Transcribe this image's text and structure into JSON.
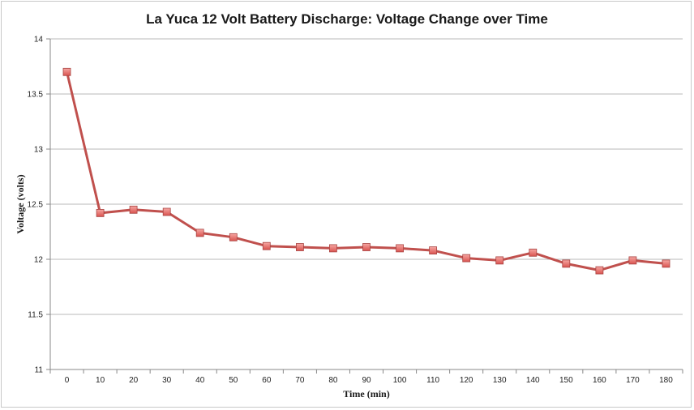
{
  "chart_data": {
    "type": "line",
    "title": "La Yuca 12 Volt Battery Discharge: Voltage Change over Time",
    "xlabel": "Time (min)",
    "ylabel": "Voltage (volts)",
    "x": [
      0,
      10,
      20,
      30,
      40,
      50,
      60,
      70,
      80,
      90,
      100,
      110,
      120,
      130,
      140,
      150,
      160,
      170,
      180
    ],
    "x_tick_labels": [
      "0",
      "10",
      "20",
      "30",
      "40",
      "50",
      "60",
      "70",
      "80",
      "90",
      "100",
      "110",
      "120",
      "130",
      "140",
      "150",
      "160",
      "170",
      "180"
    ],
    "y_ticks": [
      11,
      11.5,
      12,
      12.5,
      13,
      13.5,
      14
    ],
    "y_tick_labels": [
      "11",
      "11.5",
      "12",
      "12.5",
      "13",
      "13.5",
      "14"
    ],
    "ylim": [
      11,
      14
    ],
    "grid": true,
    "legend": "none",
    "series": [
      {
        "name": "Voltage",
        "values": [
          13.7,
          12.42,
          12.45,
          12.43,
          12.24,
          12.2,
          12.12,
          12.11,
          12.1,
          12.11,
          12.1,
          12.08,
          12.01,
          11.99,
          12.06,
          11.96,
          11.9,
          11.99,
          11.96
        ],
        "line_color": "#c0504d",
        "marker_color": "#e8736f",
        "marker": "square"
      }
    ],
    "colors": {
      "grid": "#b8b8b8",
      "axis": "#888888"
    }
  }
}
